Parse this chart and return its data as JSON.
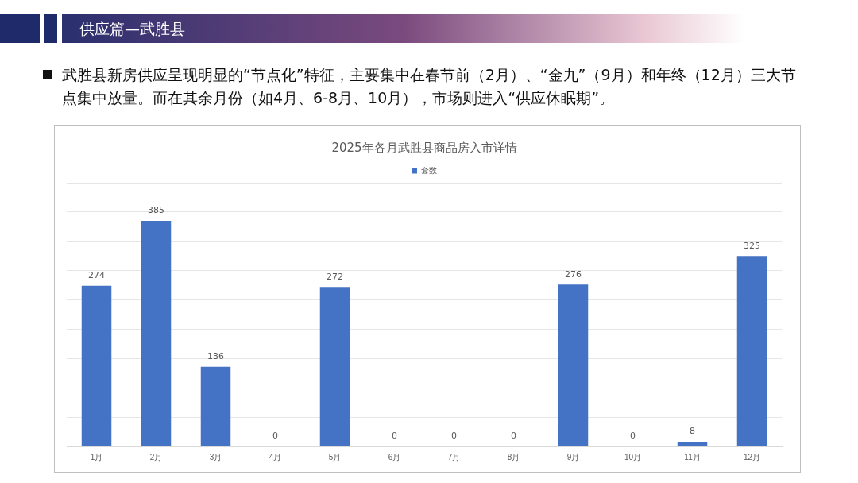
{
  "chart_data": {
    "type": "bar",
    "title": "2025年各月武胜县商品房入市详情",
    "annotations": [
      "供应篇—武胜县",
      "武胜县新房供应呈现明显的“节点化”特征，主要集中在春节前（2月）、“金九”（9月）和年终（12月）三大节点集中放量。而在其余月份（如4月、6-8月、10月），市场则进入“供应休眠期”。"
    ],
    "categories": [
      "1月",
      "2月",
      "3月",
      "4月",
      "5月",
      "6月",
      "7月",
      "8月",
      "9月",
      "10月",
      "11月",
      "12月"
    ],
    "series": [
      {
        "name": "套数",
        "color": "#4472c4",
        "values": [
          274,
          385,
          136,
          0,
          272,
          0,
          0,
          0,
          276,
          0,
          8,
          325
        ]
      }
    ],
    "ylim": [
      0,
      450
    ],
    "yticks": [
      {
        "value": 0,
        "label": null
      },
      {
        "value": 50,
        "label": null
      },
      {
        "value": 100,
        "label": null
      },
      {
        "value": 150,
        "label": null
      },
      {
        "value": 200,
        "label": null
      },
      {
        "value": 250,
        "label": null
      },
      {
        "value": 300,
        "label": null
      },
      {
        "value": 350,
        "label": null
      },
      {
        "value": 400,
        "label": null
      },
      {
        "value": 450,
        "label": null
      }
    ],
    "tick_labels": "x",
    "grid": "y",
    "legend": "top",
    "data_labels": true
  }
}
